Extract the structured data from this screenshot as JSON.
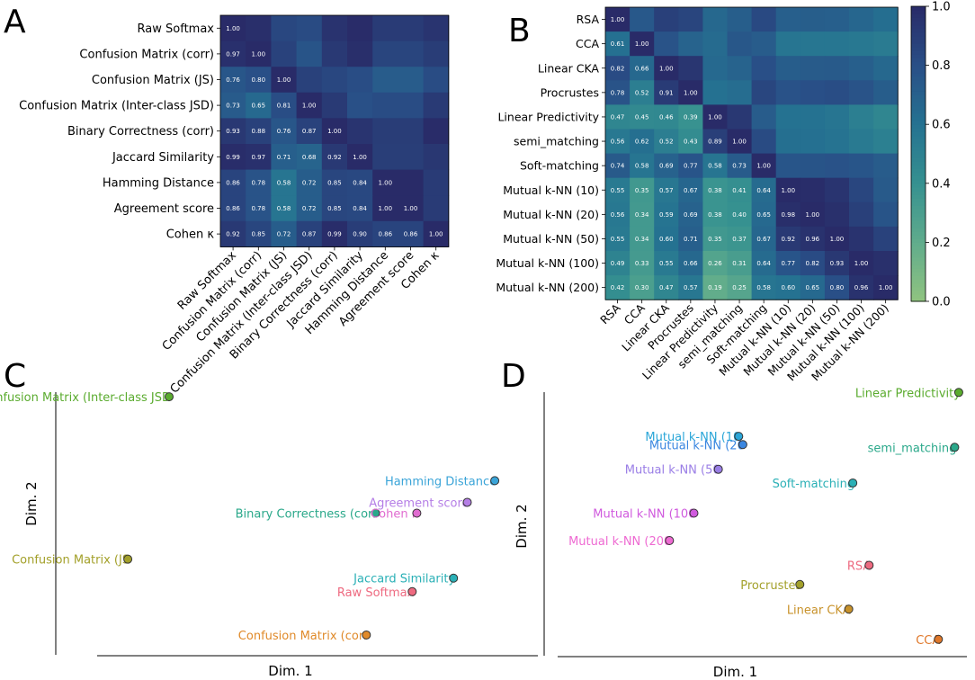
{
  "panel_letters": {
    "a": "A",
    "b": "B",
    "c": "C",
    "d": "D"
  },
  "colorbar": {
    "ticks": [
      "0.0",
      "0.2",
      "0.4",
      "0.6",
      "0.8",
      "1.0"
    ],
    "min": 0,
    "max": 1
  },
  "chart_data": [
    {
      "panel": "A",
      "type": "heatmap",
      "labels": [
        "Raw Softmax",
        "Confusion Matrix (corr)",
        "Confusion Matrix (JS)",
        "Confusion Matrix (Inter-class JSD)",
        "Binary Correctness (corr)",
        "Jaccard Similarity",
        "Hamming Distance",
        "Agreement score",
        "Cohen κ"
      ],
      "matrix": [
        [
          1.0,
          0.97,
          0.76,
          0.73,
          0.93,
          0.99,
          0.86,
          0.86,
          0.92
        ],
        [
          0.97,
          1.0,
          0.8,
          0.65,
          0.88,
          0.97,
          0.78,
          0.78,
          0.85
        ],
        [
          0.76,
          0.8,
          1.0,
          0.81,
          0.76,
          0.71,
          0.58,
          0.58,
          0.72
        ],
        [
          0.73,
          0.65,
          0.81,
          1.0,
          0.87,
          0.68,
          0.72,
          0.72,
          0.87
        ],
        [
          0.93,
          0.88,
          0.76,
          0.87,
          1.0,
          0.92,
          0.85,
          0.85,
          0.99
        ],
        [
          0.99,
          0.97,
          0.71,
          0.68,
          0.92,
          1.0,
          0.84,
          0.84,
          0.9
        ],
        [
          0.86,
          0.78,
          0.58,
          0.72,
          0.85,
          0.84,
          1.0,
          1.0,
          0.86
        ],
        [
          0.86,
          0.78,
          0.58,
          0.72,
          0.85,
          0.84,
          1.0,
          1.0,
          0.86
        ],
        [
          0.92,
          0.85,
          0.72,
          0.87,
          0.99,
          0.9,
          0.86,
          0.86,
          1.0
        ]
      ],
      "annotated": "lower-triangle"
    },
    {
      "panel": "B",
      "type": "heatmap",
      "labels": [
        "RSA",
        "CCA",
        "Linear CKA",
        "Procrustes",
        "Linear Predictivity",
        "semi_matching",
        "Soft-matching",
        "Mutual k-NN (10)",
        "Mutual k-NN (20)",
        "Mutual k-NN (50)",
        "Mutual k-NN (100)",
        "Mutual k-NN (200)"
      ],
      "matrix": [
        [
          1.0,
          0.61,
          0.82,
          0.78,
          0.47,
          0.56,
          0.74,
          0.55,
          0.56,
          0.55,
          0.49,
          0.42
        ],
        [
          0.61,
          1.0,
          0.66,
          0.52,
          0.45,
          0.62,
          0.58,
          0.35,
          0.34,
          0.34,
          0.33,
          0.3
        ],
        [
          0.82,
          0.66,
          1.0,
          0.91,
          0.46,
          0.52,
          0.69,
          0.57,
          0.59,
          0.6,
          0.55,
          0.47
        ],
        [
          0.78,
          0.52,
          0.91,
          1.0,
          0.39,
          0.43,
          0.77,
          0.67,
          0.69,
          0.71,
          0.66,
          0.57
        ],
        [
          0.47,
          0.45,
          0.46,
          0.39,
          1.0,
          0.89,
          0.58,
          0.38,
          0.38,
          0.35,
          0.26,
          0.19
        ],
        [
          0.56,
          0.62,
          0.52,
          0.43,
          0.89,
          1.0,
          0.73,
          0.41,
          0.4,
          0.37,
          0.31,
          0.25
        ],
        [
          0.74,
          0.58,
          0.69,
          0.77,
          0.58,
          0.73,
          1.0,
          0.64,
          0.65,
          0.67,
          0.64,
          0.58
        ],
        [
          0.55,
          0.35,
          0.57,
          0.67,
          0.38,
          0.41,
          0.64,
          1.0,
          0.98,
          0.92,
          0.77,
          0.6
        ],
        [
          0.56,
          0.34,
          0.59,
          0.69,
          0.38,
          0.4,
          0.65,
          0.98,
          1.0,
          0.96,
          0.82,
          0.65
        ],
        [
          0.55,
          0.34,
          0.6,
          0.71,
          0.35,
          0.37,
          0.67,
          0.92,
          0.96,
          1.0,
          0.93,
          0.8
        ],
        [
          0.49,
          0.33,
          0.55,
          0.66,
          0.26,
          0.31,
          0.64,
          0.77,
          0.82,
          0.93,
          1.0,
          0.96
        ],
        [
          0.42,
          0.3,
          0.47,
          0.57,
          0.19,
          0.25,
          0.58,
          0.6,
          0.65,
          0.8,
          0.96,
          1.0
        ]
      ],
      "annotated": "lower-triangle",
      "colorbar_range": [
        0,
        1
      ]
    },
    {
      "panel": "C",
      "type": "scatter",
      "xlabel": "Dim. 1",
      "ylabel": "Dim. 2",
      "points": [
        {
          "label": "Confusion Matrix (Inter-class JSD",
          "x": 0.2,
          "y": 0.93,
          "color": "#5aab2e"
        },
        {
          "label": "Hamming Distance",
          "x": 0.91,
          "y": 0.62,
          "color": "#3aa4d8"
        },
        {
          "label": "Agreement score",
          "x": 0.85,
          "y": 0.54,
          "color": "#b57ee6"
        },
        {
          "label": "Binary Correctness (corr",
          "x": 0.65,
          "y": 0.5,
          "color": "#2aa88a"
        },
        {
          "label": "Cohen κ",
          "x": 0.74,
          "y": 0.5,
          "color": "#e06bd0"
        },
        {
          "label": "Confusion Matrix (JS",
          "x": 0.11,
          "y": 0.33,
          "color": "#a3a02a"
        },
        {
          "label": "Jaccard Similarity",
          "x": 0.82,
          "y": 0.26,
          "color": "#2ab0b6"
        },
        {
          "label": "Raw Softmax",
          "x": 0.73,
          "y": 0.21,
          "color": "#ee6a80"
        },
        {
          "label": "Confusion Matrix (corr",
          "x": 0.63,
          "y": 0.05,
          "color": "#e08a2a"
        }
      ]
    },
    {
      "panel": "D",
      "type": "scatter",
      "xlabel": "Dim. 1",
      "ylabel": "Dim. 2",
      "points": [
        {
          "label": "Linear Predictivity",
          "x": 0.98,
          "y": 0.94,
          "color": "#5aab2e"
        },
        {
          "label": "Mutual k-NN (10",
          "x": 0.44,
          "y": 0.78,
          "color": "#2aa6d8"
        },
        {
          "label": "Mutual k-NN (20",
          "x": 0.45,
          "y": 0.75,
          "color": "#3a86e0"
        },
        {
          "label": "semi_matching",
          "x": 0.97,
          "y": 0.74,
          "color": "#2aa88a"
        },
        {
          "label": "Mutual k-NN (50",
          "x": 0.39,
          "y": 0.66,
          "color": "#9a7ee6"
        },
        {
          "label": "Soft-matching",
          "x": 0.72,
          "y": 0.61,
          "color": "#2ab0b6"
        },
        {
          "label": "Mutual k-NN (100",
          "x": 0.33,
          "y": 0.5,
          "color": "#d05ade"
        },
        {
          "label": "Mutual k-NN (200",
          "x": 0.27,
          "y": 0.4,
          "color": "#ee6ad2"
        },
        {
          "label": "RSA",
          "x": 0.76,
          "y": 0.31,
          "color": "#ee6a80"
        },
        {
          "label": "Procrustes",
          "x": 0.59,
          "y": 0.24,
          "color": "#a3a02a"
        },
        {
          "label": "Linear CKA",
          "x": 0.71,
          "y": 0.15,
          "color": "#c8922a"
        },
        {
          "label": "CCA",
          "x": 0.93,
          "y": 0.04,
          "color": "#e0782a"
        }
      ]
    }
  ]
}
